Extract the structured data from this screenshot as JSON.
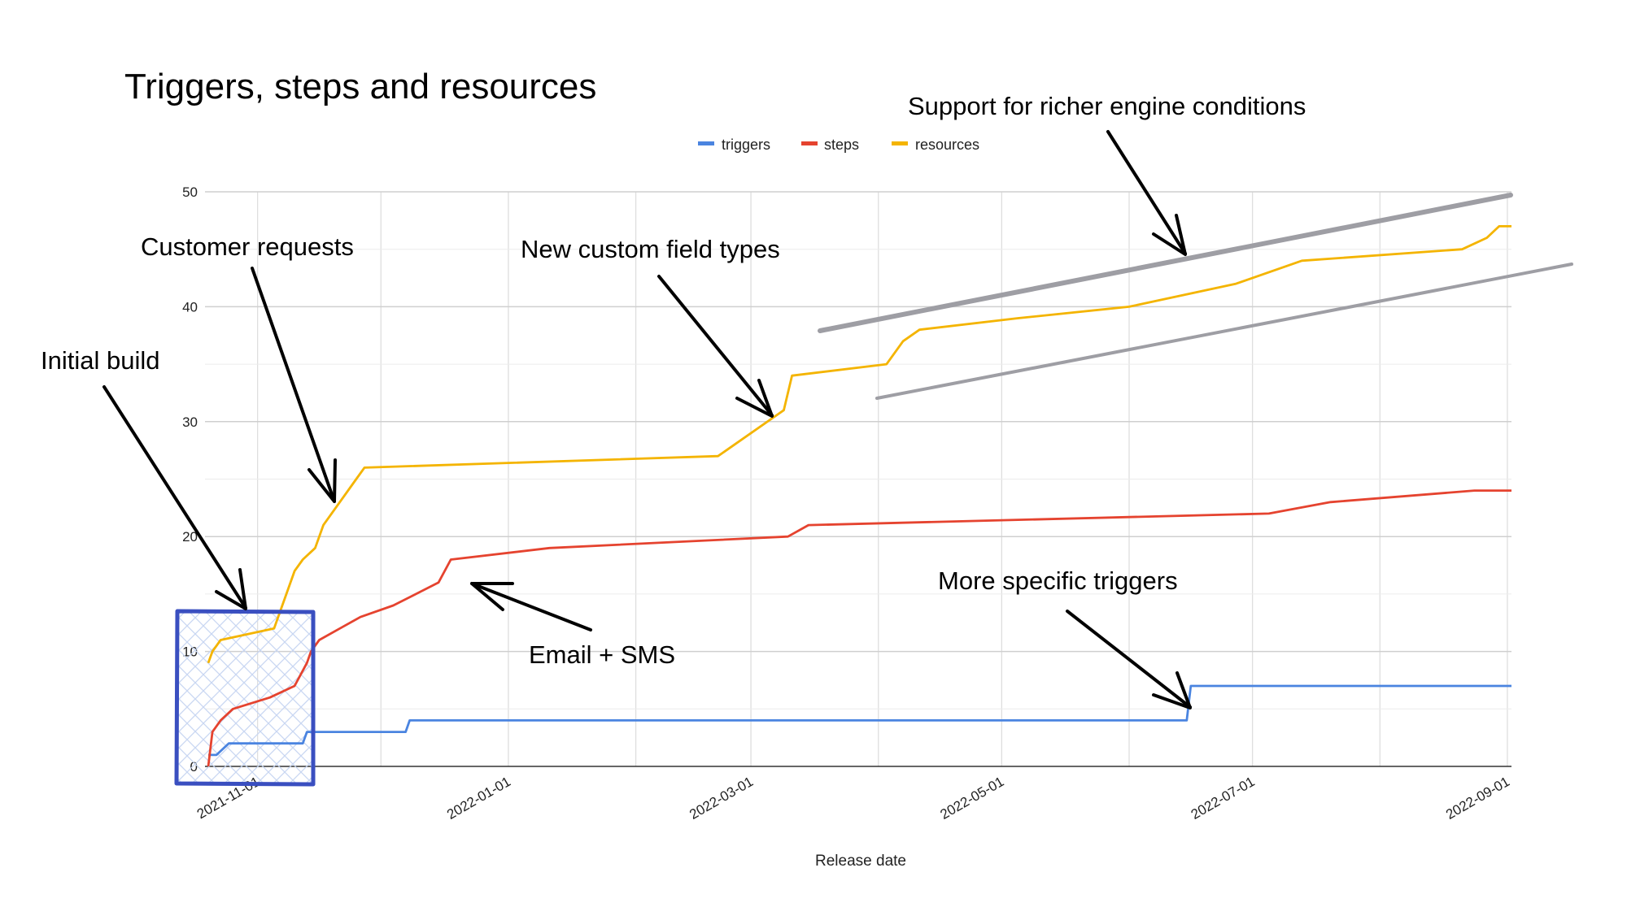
{
  "chart_data": {
    "type": "line",
    "title": "Triggers, steps and resources",
    "xlabel": "Release date",
    "ylabel": "",
    "ylim": [
      0,
      50
    ],
    "xlim": [
      "2021-10-20",
      "2022-09-02"
    ],
    "grid": true,
    "legend_position": "top-center",
    "x_ticks": [
      "2021-11-01",
      "2022-01-01",
      "2022-03-01",
      "2022-05-01",
      "2022-07-01",
      "2022-09-01"
    ],
    "y_ticks": [
      0,
      10,
      20,
      30,
      40,
      50
    ],
    "colors": {
      "triggers": "#4a84e0",
      "steps": "#e5432f",
      "resources": "#f4b400",
      "highlight": "#3a4fc0",
      "trend": "#9e9ea4"
    },
    "series": [
      {
        "name": "triggers",
        "points": [
          [
            "2021-10-20",
            1
          ],
          [
            "2021-10-22",
            1
          ],
          [
            "2021-10-25",
            2
          ],
          [
            "2021-11-12",
            2
          ],
          [
            "2021-11-13",
            3
          ],
          [
            "2021-12-07",
            3
          ],
          [
            "2021-12-08",
            4
          ],
          [
            "2022-06-15",
            4
          ],
          [
            "2022-06-16",
            7
          ],
          [
            "2022-09-02",
            7
          ]
        ]
      },
      {
        "name": "steps",
        "points": [
          [
            "2021-10-20",
            0
          ],
          [
            "2021-10-21",
            3
          ],
          [
            "2021-10-23",
            4
          ],
          [
            "2021-10-26",
            5
          ],
          [
            "2021-11-04",
            6
          ],
          [
            "2021-11-10",
            7
          ],
          [
            "2021-11-13",
            9
          ],
          [
            "2021-11-14",
            10
          ],
          [
            "2021-11-16",
            11
          ],
          [
            "2021-11-21",
            12
          ],
          [
            "2021-11-26",
            13
          ],
          [
            "2021-12-04",
            14
          ],
          [
            "2021-12-15",
            16
          ],
          [
            "2021-12-18",
            18
          ],
          [
            "2022-01-11",
            19
          ],
          [
            "2022-03-10",
            20
          ],
          [
            "2022-03-15",
            21
          ],
          [
            "2022-07-05",
            22
          ],
          [
            "2022-07-20",
            23
          ],
          [
            "2022-08-24",
            24
          ],
          [
            "2022-09-02",
            24
          ]
        ]
      },
      {
        "name": "resources",
        "points": [
          [
            "2021-10-20",
            9
          ],
          [
            "2021-10-21",
            10
          ],
          [
            "2021-10-23",
            11
          ],
          [
            "2021-11-05",
            12
          ],
          [
            "2021-11-10",
            17
          ],
          [
            "2021-11-12",
            18
          ],
          [
            "2021-11-15",
            19
          ],
          [
            "2021-11-17",
            21
          ],
          [
            "2021-11-21",
            23
          ],
          [
            "2021-11-25",
            25
          ],
          [
            "2021-11-27",
            26
          ],
          [
            "2022-02-21",
            27
          ],
          [
            "2022-03-09",
            31
          ],
          [
            "2022-03-11",
            34
          ],
          [
            "2022-04-03",
            35
          ],
          [
            "2022-04-07",
            37
          ],
          [
            "2022-04-11",
            38
          ],
          [
            "2022-05-05",
            39
          ],
          [
            "2022-06-01",
            40
          ],
          [
            "2022-06-27",
            42
          ],
          [
            "2022-07-13",
            44
          ],
          [
            "2022-08-21",
            45
          ],
          [
            "2022-08-27",
            46
          ],
          [
            "2022-08-30",
            47
          ],
          [
            "2022-09-02",
            47
          ]
        ]
      }
    ],
    "annotations": [
      {
        "id": "initial-build",
        "text": "Initial build"
      },
      {
        "id": "customer-requests",
        "text": "Customer requests"
      },
      {
        "id": "new-custom-field-types",
        "text": "New custom field types"
      },
      {
        "id": "support-richer-conditions",
        "text": "Support for richer engine conditions"
      },
      {
        "id": "email-sms",
        "text": "Email + SMS"
      },
      {
        "id": "more-specific-triggers",
        "text": "More specific triggers"
      }
    ]
  }
}
